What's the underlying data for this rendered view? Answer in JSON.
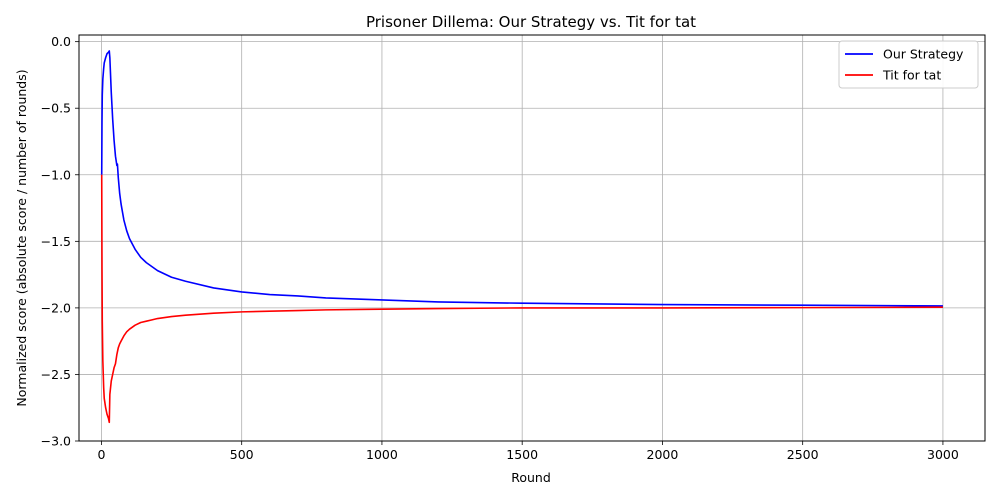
{
  "chart_data": {
    "type": "line",
    "title": "Prisoner Dillema: Our Strategy vs. Tit for tat",
    "xlabel": "Round",
    "ylabel": "Normalized score (absolute score / number of rounds)",
    "xlim": [
      -80,
      3150
    ],
    "ylim": [
      -3.0,
      0.05
    ],
    "xticks": [
      0,
      500,
      1000,
      1500,
      2000,
      2500,
      3000
    ],
    "xtick_labels": [
      "0",
      "500",
      "1000",
      "1500",
      "2000",
      "2500",
      "3000"
    ],
    "yticks": [
      0.0,
      -0.5,
      -1.0,
      -1.5,
      -2.0,
      -2.5,
      -3.0
    ],
    "ytick_labels": [
      "0.0",
      "−0.5",
      "−1.0",
      "−1.5",
      "−2.0",
      "−2.5",
      "−3.0"
    ],
    "grid": true,
    "legend_position": "top-right",
    "series": [
      {
        "name": "Our Strategy",
        "color": "#0000ff",
        "x": [
          1,
          2,
          3,
          5,
          8,
          10,
          15,
          20,
          25,
          28,
          30,
          35,
          40,
          45,
          50,
          55,
          57,
          60,
          65,
          70,
          80,
          90,
          100,
          120,
          140,
          160,
          180,
          200,
          250,
          300,
          400,
          500,
          600,
          700,
          800,
          1000,
          1200,
          1500,
          2000,
          2500,
          3000
        ],
        "y": [
          -1.0,
          -0.6,
          -0.4,
          -0.28,
          -0.2,
          -0.16,
          -0.12,
          -0.09,
          -0.08,
          -0.07,
          -0.12,
          -0.38,
          -0.58,
          -0.74,
          -0.86,
          -0.93,
          -0.92,
          -1.02,
          -1.14,
          -1.22,
          -1.34,
          -1.42,
          -1.48,
          -1.56,
          -1.62,
          -1.66,
          -1.69,
          -1.72,
          -1.77,
          -1.8,
          -1.85,
          -1.88,
          -1.9,
          -1.91,
          -1.925,
          -1.94,
          -1.955,
          -1.965,
          -1.975,
          -1.98,
          -1.985
        ]
      },
      {
        "name": "Tit for tat",
        "color": "#ff0000",
        "x": [
          1,
          2,
          3,
          5,
          8,
          10,
          15,
          20,
          25,
          28,
          30,
          35,
          40,
          45,
          50,
          55,
          57,
          60,
          65,
          70,
          80,
          90,
          100,
          120,
          140,
          160,
          180,
          200,
          250,
          300,
          400,
          500,
          600,
          700,
          800,
          1000,
          1200,
          1500,
          2000,
          2500,
          3000
        ],
        "y": [
          -1.0,
          -1.7,
          -2.1,
          -2.4,
          -2.6,
          -2.68,
          -2.75,
          -2.8,
          -2.83,
          -2.86,
          -2.65,
          -2.55,
          -2.5,
          -2.45,
          -2.42,
          -2.35,
          -2.33,
          -2.3,
          -2.27,
          -2.25,
          -2.21,
          -2.18,
          -2.16,
          -2.13,
          -2.11,
          -2.1,
          -2.09,
          -2.08,
          -2.065,
          -2.055,
          -2.04,
          -2.03,
          -2.025,
          -2.02,
          -2.015,
          -2.01,
          -2.005,
          -2.0,
          -2.0,
          -1.998,
          -1.995
        ]
      }
    ]
  }
}
